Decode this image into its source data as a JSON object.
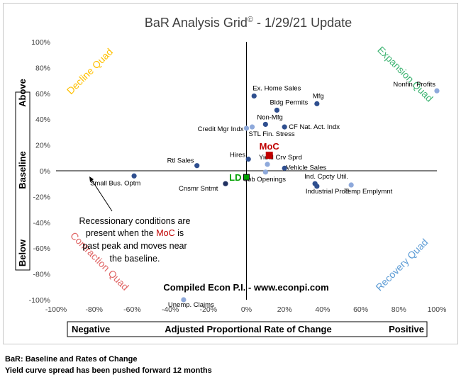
{
  "chart_data": {
    "type": "scatter",
    "title_prefix": "BaR Analysis Grid",
    "title_mark": "©",
    "title_suffix": " - 1/29/21 Update",
    "xlabel": "Adjusted Proportional Rate of Change",
    "xlabel_left": "Negative",
    "xlabel_right": "Positive",
    "ylabel_top": "Above",
    "ylabel_mid": "Baseline",
    "ylabel_bottom": "Below",
    "xlim": [
      -100,
      100
    ],
    "ylim": [
      -100,
      100
    ],
    "xticks": [
      -100,
      -80,
      -60,
      -40,
      -20,
      0,
      20,
      40,
      60,
      80,
      100
    ],
    "yticks": [
      -100,
      -80,
      -60,
      -40,
      -20,
      0,
      20,
      40,
      60,
      80,
      100
    ],
    "tick_suffix": "%",
    "points": [
      {
        "label": "Nonfin. Profits",
        "x": 100,
        "y": 62,
        "color": "#8ea9db"
      },
      {
        "label": "Ex. Home Sales",
        "x": 4,
        "y": 58,
        "color": "#2f4f8f"
      },
      {
        "label": "Mfg",
        "x": 37,
        "y": 52,
        "color": "#2f4f8f"
      },
      {
        "label": "Bldg Permits",
        "x": 16,
        "y": 47,
        "color": "#2f4f8f"
      },
      {
        "label": "Non-Mfg",
        "x": 10,
        "y": 36,
        "color": "#2f4f8f"
      },
      {
        "label": "CF Nat. Act. Indx",
        "x": 20,
        "y": 34,
        "color": "#2f4f8f"
      },
      {
        "label": "Credit Mgr Indx",
        "x": 0,
        "y": 33,
        "color": "#8ea9db"
      },
      {
        "label": "STL Fin. Stress",
        "x": 3,
        "y": 34,
        "color": "#8ea9db"
      },
      {
        "label": "Hires",
        "x": 1,
        "y": 9,
        "color": "#2f4f8f"
      },
      {
        "label": "Rtl Sales",
        "x": -26,
        "y": 4,
        "color": "#2f4f8f"
      },
      {
        "label": "Yield Crv Sprd",
        "x": 11,
        "y": 5,
        "color": "#8ea9db"
      },
      {
        "label": "Vehicle Sales",
        "x": 20,
        "y": 2,
        "color": "#2f4f8f"
      },
      {
        "label": "Job Openings",
        "x": 10,
        "y": -1,
        "color": "#8ea9db"
      },
      {
        "label": "Small Bus. Optm",
        "x": -59,
        "y": -4,
        "color": "#2f4f8f"
      },
      {
        "label": "Cnsmr Sntmt",
        "x": -11,
        "y": -10,
        "color": "#203060"
      },
      {
        "label": "Ind. Cpcty Util.",
        "x": 36,
        "y": -10,
        "color": "#2f4f8f"
      },
      {
        "label": "Industrial Prod.",
        "x": 37,
        "y": -12,
        "color": "#2f4f8f"
      },
      {
        "label": "Temp Emplymnt",
        "x": 55,
        "y": -11,
        "color": "#8ea9db"
      },
      {
        "label": "Unemp. Claims",
        "x": -33,
        "y": -100,
        "color": "#8ea9db"
      }
    ],
    "moc": {
      "label": "MoC",
      "x": 12,
      "y": 12,
      "color": "#c00000"
    },
    "ld": {
      "label": "LD",
      "x": 0,
      "y": -5,
      "color": "#00a000"
    },
    "quadrants": {
      "decline": {
        "label": "Decline Quad",
        "color": "#ffc000"
      },
      "expansion": {
        "label": "Expansion Quad",
        "color": "#3cb371"
      },
      "contraction": {
        "label": "Contraction Quad",
        "color": "#e06666"
      },
      "recovery": {
        "label": "Recovery Quad",
        "color": "#5b9bd5"
      }
    },
    "note_pre": "Recessionary conditions are",
    "note_mid_a": "present when the ",
    "note_mid_mark": "MoC",
    "note_mid_b": " is",
    "note_line3": "past peak and moves near",
    "note_line4": "the baseline.",
    "credit": "Compiled Econ P.I. - www.econpi.com"
  },
  "footer": {
    "line1": "BaR: Baseline and Rates of Change",
    "line2": "Yield curve spread has been pushed forward 12 months"
  }
}
